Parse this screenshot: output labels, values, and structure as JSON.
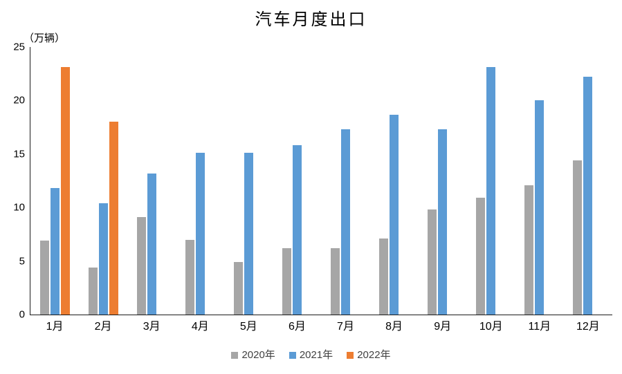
{
  "chart_data": {
    "type": "bar",
    "title": "汽车月度出口",
    "unit_label": "（万辆）",
    "categories": [
      "1月",
      "2月",
      "3月",
      "4月",
      "5月",
      "6月",
      "7月",
      "8月",
      "9月",
      "10月",
      "11月",
      "12月"
    ],
    "series": [
      {
        "name": "2020年",
        "color": "#A6A6A6",
        "values": [
          6.9,
          4.4,
          9.1,
          7.0,
          4.9,
          6.2,
          6.2,
          7.1,
          9.8,
          10.9,
          12.1,
          14.4
        ]
      },
      {
        "name": "2021年",
        "color": "#5B9BD5",
        "values": [
          11.8,
          10.4,
          13.2,
          15.1,
          15.1,
          15.8,
          17.3,
          18.7,
          17.3,
          23.1,
          20.0,
          22.2
        ]
      },
      {
        "name": "2022年",
        "color": "#ED7D31",
        "values": [
          23.1,
          18.0,
          null,
          null,
          null,
          null,
          null,
          null,
          null,
          null,
          null,
          null
        ]
      }
    ],
    "y_axis": {
      "min": 0,
      "max": 25,
      "step": 5,
      "tick_values": [
        0,
        5,
        10,
        15,
        20,
        25
      ]
    },
    "legend": {
      "position": "bottom",
      "items": [
        "2020年",
        "2021年",
        "2022年"
      ]
    },
    "grid": false,
    "axis_color": "#1a1a1a"
  }
}
